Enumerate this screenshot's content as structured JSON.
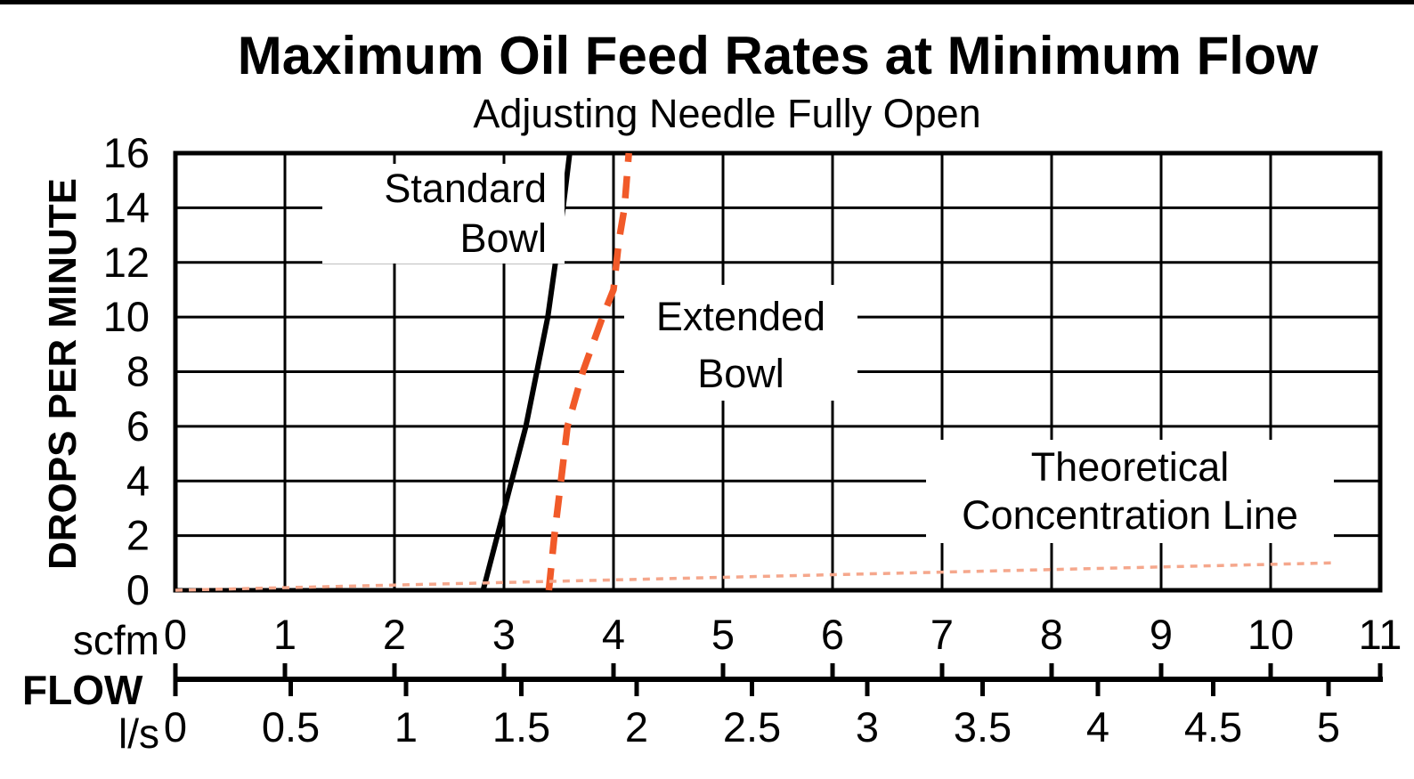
{
  "chart_data": {
    "type": "line",
    "title": "Maximum Oil Feed Rates at Minimum Flow",
    "subtitle": "Adjusting Needle Fully Open",
    "grid": true,
    "legend_position": "inline-labels",
    "y_axis": {
      "label": "DROPS PER MINUTE",
      "ticks": [
        0,
        2,
        4,
        6,
        8,
        10,
        12,
        14,
        16
      ],
      "range": [
        0,
        16
      ]
    },
    "x_axis": {
      "label": "FLOW",
      "scales": [
        {
          "unit": "scfm",
          "ticks": [
            0,
            1,
            2,
            3,
            4,
            5,
            6,
            7,
            8,
            9,
            10,
            11
          ],
          "range": [
            0,
            11
          ]
        },
        {
          "unit": "l/s",
          "ticks": [
            0,
            0.5,
            1,
            1.5,
            2,
            2.5,
            3,
            3.5,
            4,
            4.5,
            5
          ],
          "range": [
            0,
            5.23
          ]
        }
      ]
    },
    "series": [
      {
        "name": "Standard Bowl",
        "label_lines": [
          "Standard",
          "Bowl"
        ],
        "color": "#000000",
        "line_style": "solid",
        "x_unit": "scfm",
        "points": [
          [
            2.81,
            0
          ],
          [
            2.94,
            2
          ],
          [
            3.07,
            4
          ],
          [
            3.2,
            6
          ],
          [
            3.3,
            8
          ],
          [
            3.4,
            10
          ],
          [
            3.47,
            12
          ],
          [
            3.54,
            14
          ],
          [
            3.6,
            16
          ]
        ]
      },
      {
        "name": "Extended Bowl",
        "label_lines": [
          "Extended",
          "Bowl"
        ],
        "color": "#F15A29",
        "line_style": "dashed",
        "x_unit": "scfm",
        "points": [
          [
            3.41,
            0
          ],
          [
            3.46,
            2
          ],
          [
            3.52,
            4
          ],
          [
            3.58,
            6
          ],
          [
            3.72,
            8
          ],
          [
            3.9,
            10
          ],
          [
            4.0,
            11
          ],
          [
            4.05,
            12.8
          ],
          [
            4.1,
            14
          ],
          [
            4.14,
            16
          ]
        ]
      },
      {
        "name": "Theoretical Concentration Line",
        "label_lines": [
          "Theoretical",
          "Concentration Line"
        ],
        "color": "#F5A78C",
        "line_style": "fine-dashed",
        "x_unit": "scfm",
        "points": [
          [
            0,
            0
          ],
          [
            10.55,
            1.0
          ]
        ]
      }
    ]
  }
}
